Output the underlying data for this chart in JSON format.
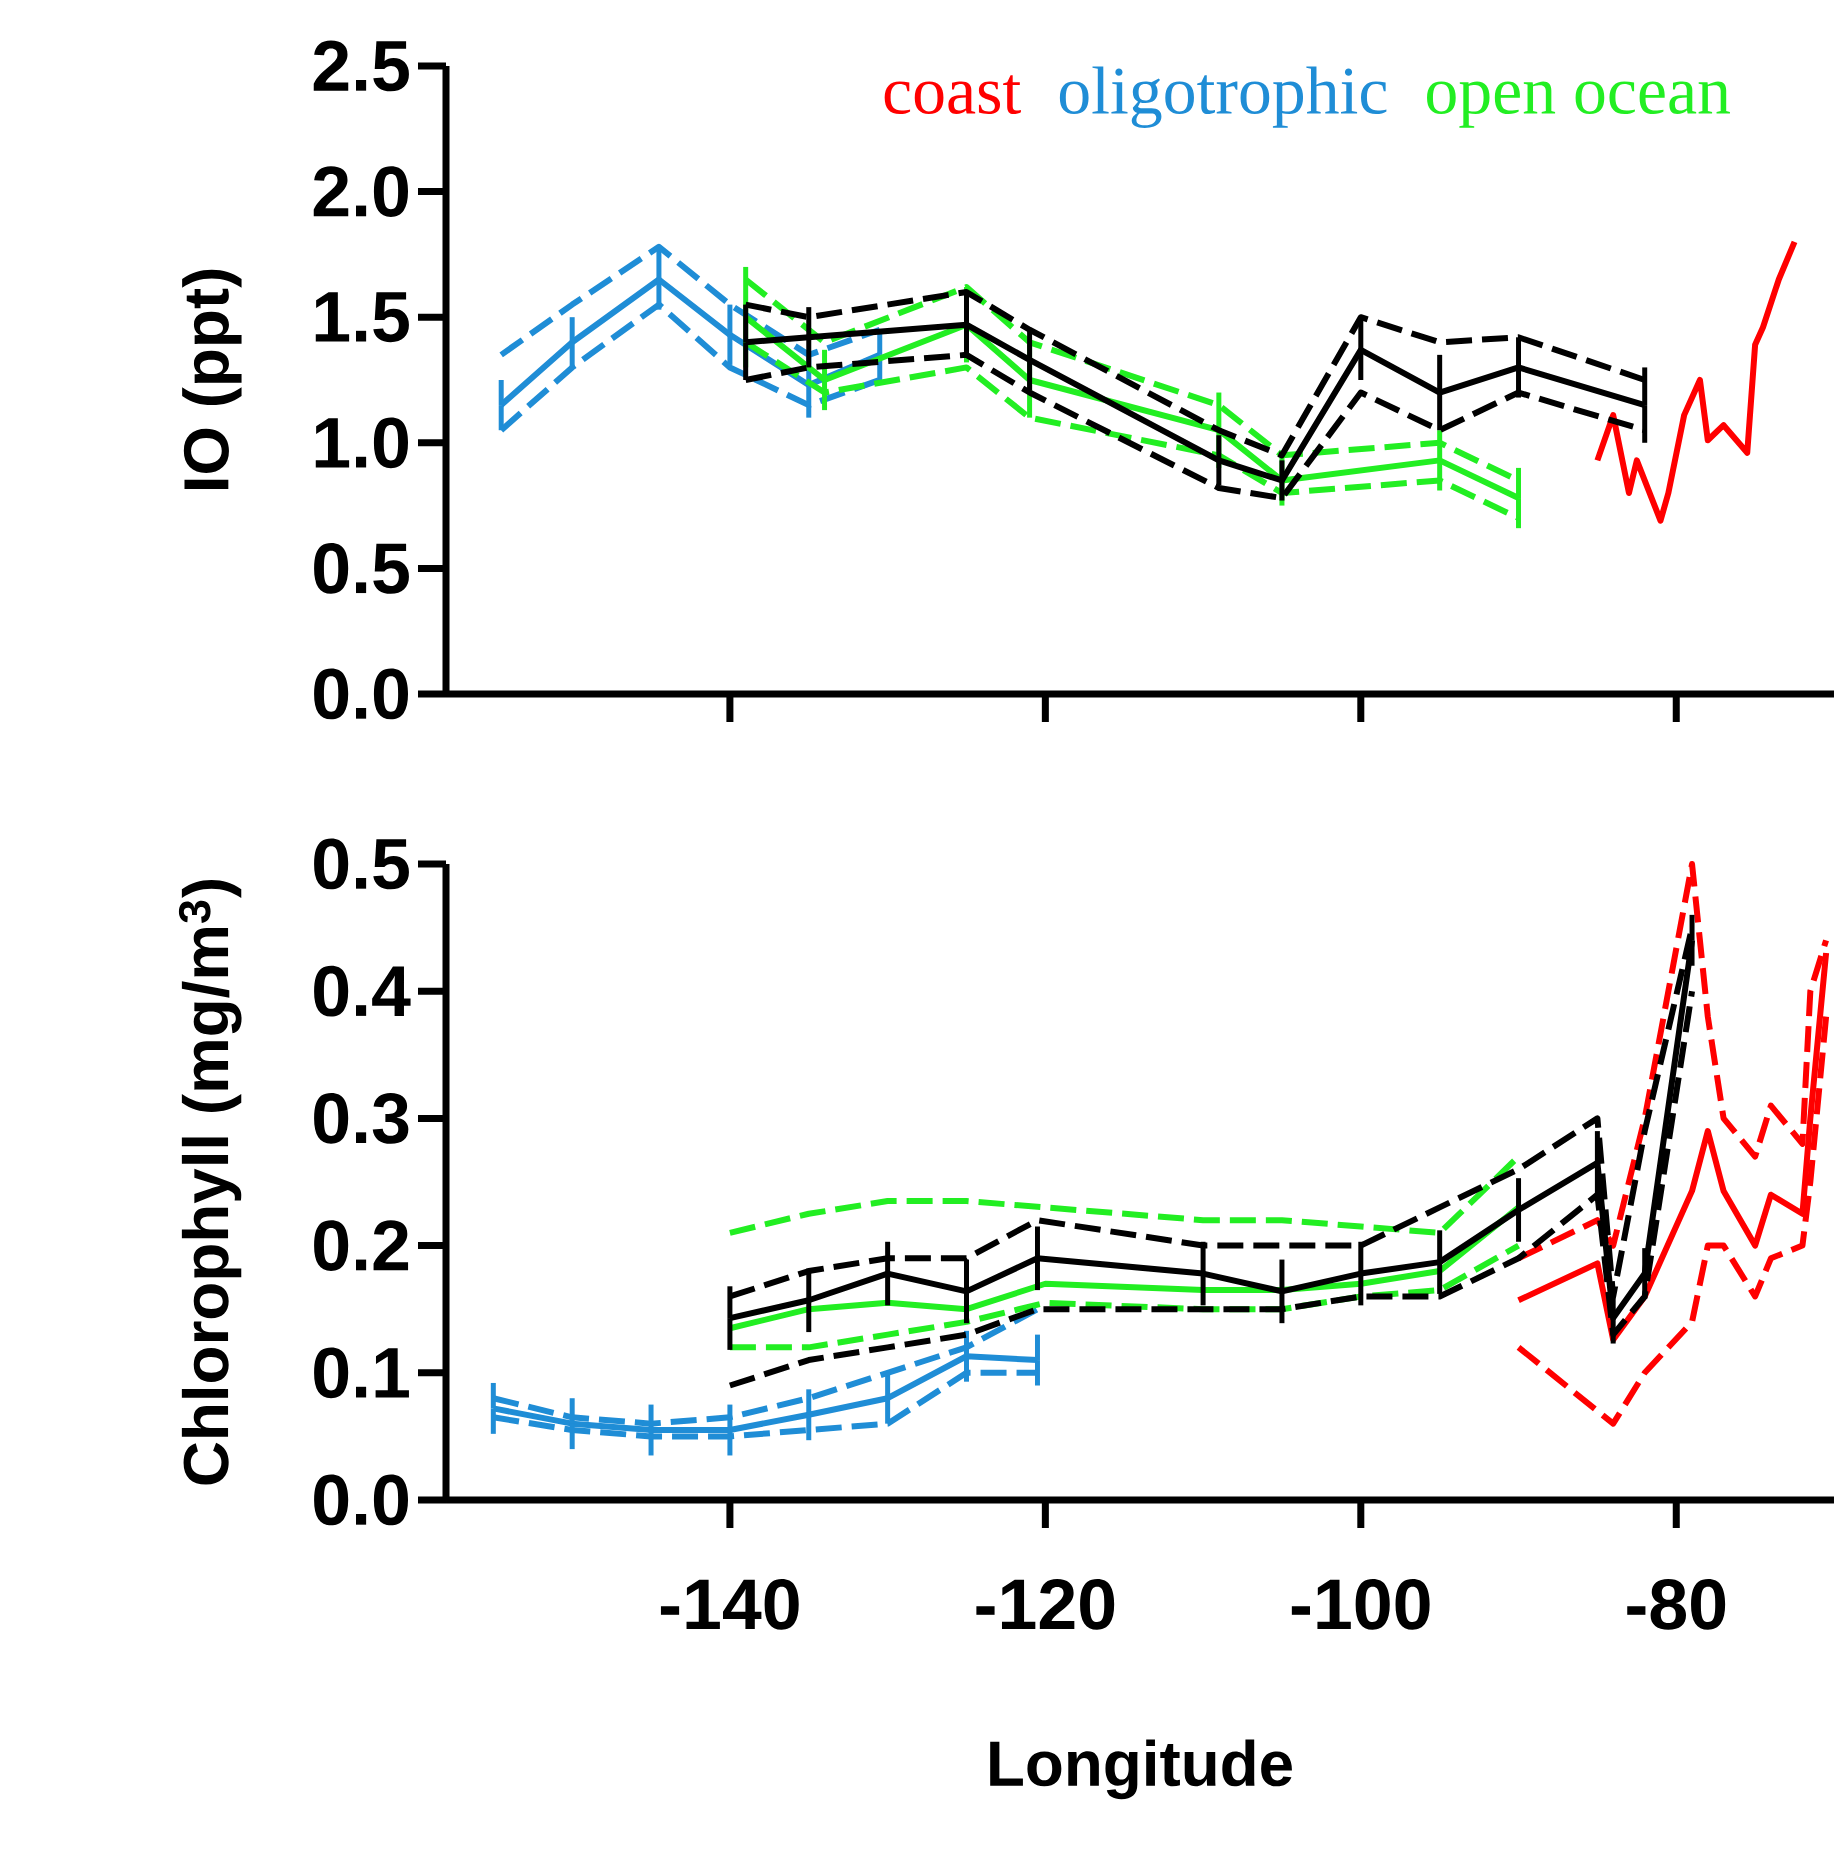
{
  "chart_data": [
    {
      "type": "line",
      "ylabel": "IO (ppt)",
      "legend": "top",
      "tick_labels": "y",
      "xlim": [
        -158,
        -70
      ],
      "ylim": [
        0,
        2.5
      ],
      "xticks": [
        -140,
        -120,
        -100,
        -80
      ],
      "yticks": [
        {
          "value": 0,
          "label": "0.0"
        },
        {
          "value": 0.5,
          "label": "0.5"
        },
        {
          "value": 1,
          "label": "1.0"
        },
        {
          "value": 1.5,
          "label": "1.5"
        },
        {
          "value": 2,
          "label": "2.0"
        },
        {
          "value": 2.5,
          "label": "2.5"
        }
      ],
      "series": [
        {
          "name": "coast",
          "color": "#ff0000",
          "x": [
            -85,
            -84,
            -83,
            -82.5,
            -81,
            -80.5,
            -79.5,
            -78.5,
            -78,
            -77,
            -75.5,
            -75,
            -74.5,
            -73.5,
            -72.5
          ],
          "values": [
            0.93,
            1.11,
            0.8,
            0.93,
            0.69,
            0.8,
            1.11,
            1.25,
            1.01,
            1.07,
            0.96,
            1.39,
            1.46,
            1.65,
            1.8
          ]
        },
        {
          "name": "oligotrophic",
          "color": "#1f8dd6",
          "x": [
            -154.5,
            -150,
            -144.5,
            -140,
            -135,
            -130.5
          ],
          "values": [
            1.15,
            1.4,
            1.65,
            1.43,
            1.23,
            1.35
          ],
          "errors": [
            0.1,
            0.1,
            0.12,
            0.12,
            0.13,
            0.1
          ]
        },
        {
          "color": "#1f8dd6",
          "line_style": "dashed",
          "x": [
            -154.5,
            -150,
            -144.5,
            -140,
            -135,
            -130.5
          ],
          "values": [
            1.05,
            1.3,
            1.55,
            1.3,
            1.15,
            1.25
          ]
        },
        {
          "color": "#1f8dd6",
          "line_style": "dashed",
          "x": [
            -154.5,
            -150,
            -144.5,
            -140,
            -135,
            -130.5
          ],
          "values": [
            1.35,
            1.55,
            1.78,
            1.55,
            1.35,
            1.45
          ]
        },
        {
          "name": "open ocean",
          "color": "#22ee22",
          "x": [
            -139,
            -134,
            -125,
            -121,
            -109,
            -105,
            -95,
            -90
          ],
          "values": [
            1.5,
            1.25,
            1.47,
            1.25,
            1.05,
            0.85,
            0.93,
            0.78
          ],
          "errors": [
            0.2,
            0.12,
            0.15,
            0.15,
            0.15,
            0.1,
            0.12,
            0.12
          ]
        },
        {
          "color": "#22ee22",
          "line_style": "dashed",
          "x": [
            -139,
            -134,
            -125,
            -121,
            -109,
            -105,
            -95,
            -90
          ],
          "values": [
            1.4,
            1.2,
            1.3,
            1.1,
            0.95,
            0.8,
            0.85,
            0.7
          ]
        },
        {
          "color": "#22ee22",
          "line_style": "dashed",
          "x": [
            -139,
            -134,
            -125,
            -121,
            -109,
            -105,
            -95,
            -90
          ],
          "values": [
            1.65,
            1.4,
            1.62,
            1.4,
            1.15,
            0.95,
            1.0,
            0.85
          ]
        },
        {
          "color": "#000000",
          "x": [
            -139,
            -135,
            -125,
            -121,
            -109,
            -105,
            -100,
            -95,
            -90,
            -82
          ],
          "values": [
            1.4,
            1.42,
            1.47,
            1.33,
            0.93,
            0.85,
            1.37,
            1.2,
            1.3,
            1.15
          ],
          "errors": [
            0.15,
            0.12,
            0.12,
            0.12,
            0.1,
            0.08,
            0.12,
            0.15,
            0.12,
            0.15
          ]
        },
        {
          "color": "#000000",
          "line_style": "dashed",
          "x": [
            -139,
            -135,
            -125,
            -121,
            -109,
            -105,
            -100,
            -95,
            -90,
            -82
          ],
          "values": [
            1.25,
            1.3,
            1.35,
            1.2,
            0.82,
            0.78,
            1.2,
            1.05,
            1.2,
            1.05
          ]
        },
        {
          "color": "#000000",
          "line_style": "dashed",
          "x": [
            -139,
            -135,
            -125,
            -121,
            -109,
            -105,
            -100,
            -95,
            -90,
            -82
          ],
          "values": [
            1.55,
            1.5,
            1.6,
            1.45,
            1.05,
            0.95,
            1.5,
            1.4,
            1.42,
            1.25
          ]
        }
      ]
    },
    {
      "type": "line",
      "ylabel": "Chlorophyll (mg/m$^{3}$)",
      "xlabel": "Longitude",
      "xlim": [
        -158,
        -70
      ],
      "ylim": [
        0,
        0.5
      ],
      "xticks": [
        -140,
        -120,
        -100,
        -80
      ],
      "yticks": [
        {
          "value": 0,
          "label": "0.0"
        },
        {
          "value": 0.1,
          "label": "0.1"
        },
        {
          "value": 0.2,
          "label": "0.2"
        },
        {
          "value": 0.3,
          "label": "0.3"
        },
        {
          "value": 0.4,
          "label": "0.4"
        },
        {
          "value": 0.5,
          "label": "0.5"
        }
      ],
      "series": [
        {
          "color": "#ff0000",
          "x": [
            -90,
            -85,
            -84,
            -82,
            -79,
            -78,
            -77,
            -75,
            -74,
            -72,
            -71.5,
            -70.5
          ],
          "values": [
            0.157,
            0.186,
            0.126,
            0.16,
            0.243,
            0.29,
            0.243,
            0.2,
            0.24,
            0.225,
            0.3,
            0.43
          ]
        },
        {
          "color": "#ff0000",
          "line_style": "dashed",
          "x": [
            -90,
            -85,
            -84,
            -82,
            -79,
            -78,
            -77,
            -75,
            -74,
            -72,
            -71.5,
            -70.5
          ],
          "values": [
            0.12,
            0.07,
            0.06,
            0.1,
            0.14,
            0.2,
            0.2,
            0.16,
            0.19,
            0.2,
            0.25,
            0.38
          ]
        },
        {
          "color": "#ff0000",
          "line_style": "dashed",
          "x": [
            -90,
            -85,
            -84,
            -82,
            -79,
            -78,
            -77,
            -75,
            -74,
            -72,
            -71.5,
            -70.5
          ],
          "values": [
            0.19,
            0.22,
            0.2,
            0.3,
            0.5,
            0.38,
            0.3,
            0.27,
            0.31,
            0.28,
            0.4,
            0.44
          ]
        },
        {
          "color": "#1f8dd6",
          "x": [
            -155,
            -150,
            -145,
            -140,
            -135,
            -130,
            -125,
            -120.5
          ],
          "values": [
            0.072,
            0.06,
            0.055,
            0.055,
            0.067,
            0.08,
            0.113,
            0.11
          ],
          "errors": [
            0.02,
            0.02,
            0.02,
            0.02,
            0.02,
            0.02,
            0.02,
            0.02
          ]
        },
        {
          "color": "#1f8dd6",
          "line_style": "dashed",
          "x": [
            -155,
            -150,
            -145,
            -140,
            -135,
            -130,
            -125,
            -120.5
          ],
          "values": [
            0.065,
            0.055,
            0.05,
            0.05,
            0.055,
            0.06,
            0.1,
            0.1
          ]
        },
        {
          "color": "#1f8dd6",
          "line_style": "dashed",
          "x": [
            -155,
            -150,
            -145,
            -140,
            -135,
            -130,
            -125,
            -120.5
          ],
          "values": [
            0.08,
            0.065,
            0.06,
            0.065,
            0.08,
            0.1,
            0.12,
            0.15
          ]
        },
        {
          "color": "#22ee22",
          "x": [
            -140,
            -135,
            -130,
            -125,
            -120,
            -110,
            -105,
            -100,
            -95,
            -90
          ],
          "values": [
            0.135,
            0.15,
            0.155,
            0.15,
            0.17,
            0.165,
            0.165,
            0.17,
            0.18,
            0.23
          ]
        },
        {
          "color": "#22ee22",
          "line_style": "dashed",
          "x": [
            -140,
            -135,
            -130,
            -125,
            -120,
            -110,
            -105,
            -100,
            -95,
            -90
          ],
          "values": [
            0.12,
            0.12,
            0.13,
            0.14,
            0.155,
            0.15,
            0.15,
            0.16,
            0.165,
            0.2
          ]
        },
        {
          "color": "#22ee22",
          "line_style": "dashed",
          "x": [
            -140,
            -135,
            -130,
            -125,
            -120,
            -110,
            -105,
            -100,
            -95,
            -90
          ],
          "values": [
            0.21,
            0.225,
            0.235,
            0.235,
            0.23,
            0.22,
            0.22,
            0.215,
            0.21,
            0.27
          ]
        },
        {
          "color": "#000000",
          "x": [
            -140,
            -135,
            -130,
            -125,
            -120.5,
            -110,
            -105,
            -100,
            -95,
            -90,
            -85,
            -84,
            -82,
            -79
          ],
          "values": [
            0.143,
            0.157,
            0.178,
            0.164,
            0.19,
            0.178,
            0.164,
            0.178,
            0.187,
            0.228,
            0.265,
            0.143,
            0.178,
            0.44
          ],
          "errors": [
            0.025,
            0.025,
            0.025,
            0.025,
            0.025,
            0.025,
            0.025,
            0.025,
            0.025,
            0.025,
            0.025,
            0.02,
            0.02,
            0.02
          ]
        },
        {
          "color": "#000000",
          "line_style": "dashed",
          "x": [
            -140,
            -135,
            -130,
            -125,
            -120.5,
            -110,
            -105,
            -100,
            -95,
            -90,
            -85,
            -84,
            -82,
            -79
          ],
          "values": [
            0.09,
            0.11,
            0.12,
            0.13,
            0.15,
            0.15,
            0.15,
            0.16,
            0.16,
            0.19,
            0.24,
            0.13,
            0.16,
            0.4
          ]
        },
        {
          "color": "#000000",
          "line_style": "dashed",
          "x": [
            -140,
            -135,
            -130,
            -125,
            -120.5,
            -110,
            -105,
            -100,
            -95,
            -90,
            -85,
            -84,
            -82,
            -79
          ],
          "values": [
            0.16,
            0.18,
            0.19,
            0.19,
            0.22,
            0.2,
            0.2,
            0.2,
            0.23,
            0.26,
            0.3,
            0.16,
            0.29,
            0.45
          ]
        }
      ]
    }
  ]
}
